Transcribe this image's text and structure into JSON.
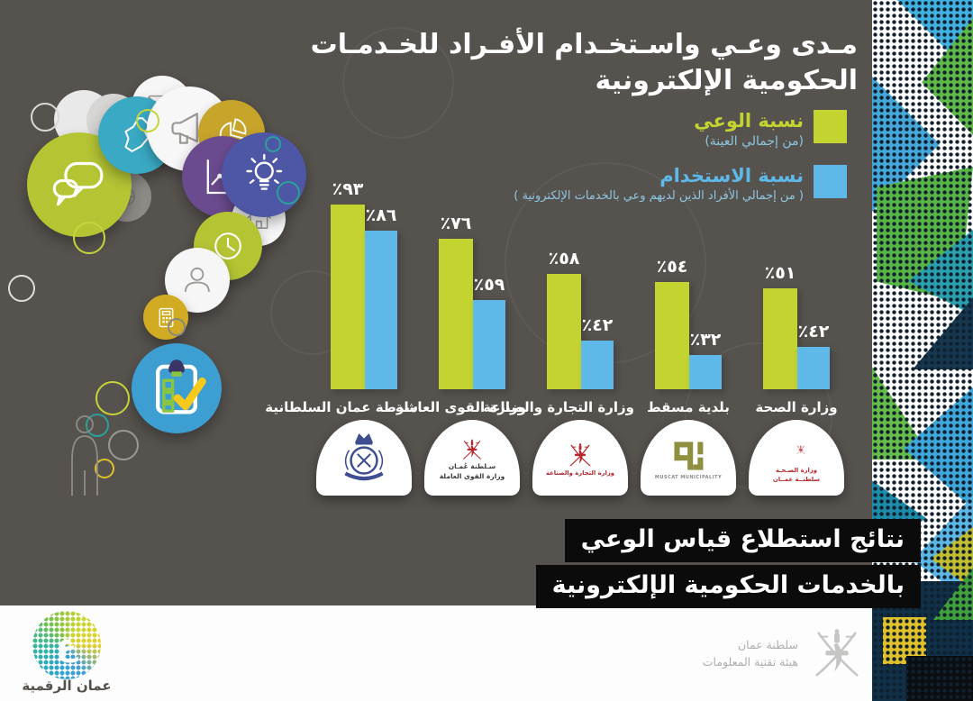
{
  "title": {
    "line1": "مـدى وعـي واسـتخـدام الأفـراد للخـدمـات",
    "line2": "الحكومية الإلكترونية"
  },
  "legend": {
    "awareness": {
      "label": "نسبة الوعي",
      "sublabel": "(من إجمالي العينة)",
      "color": "#c3d32f"
    },
    "usage": {
      "label": "نسبة الاستخدام",
      "sublabel": "( من إجمالي الأفراد الذين لديهم وعي بالخدمات الإلكترونية )",
      "color": "#5eb9e9"
    }
  },
  "chart_data": {
    "type": "bar",
    "categories": [
      "شرطة عمان السلطانية",
      "وزارة القوى العاملة",
      "وزارة التجارة والصناعة",
      "بلدية مسقط",
      "وزارة الصحة"
    ],
    "series": [
      {
        "name": "نسبة الوعي",
        "values": [
          93,
          76,
          58,
          54,
          51
        ],
        "labels": [
          "٪٩٣",
          "٪٧٦",
          "٪٥٨",
          "٪٥٤",
          "٪٥١"
        ],
        "color": "#c3d32f"
      },
      {
        "name": "نسبة الاستخدام",
        "values": [
          86,
          59,
          42,
          32,
          42
        ],
        "labels": [
          "٪٨٦",
          "٪٥٩",
          "٪٤٢",
          "٪٣٢",
          "٪٤٢"
        ],
        "color": "#5eb9e9"
      }
    ],
    "ylim": [
      0,
      100
    ],
    "grid": false,
    "legend_position": "top-right",
    "usage_bars_relative_to_awareness": true
  },
  "badges": [
    {
      "name": "royal-oman-police",
      "caption": "شرطة عمان السلطانية"
    },
    {
      "name": "ministry-of-manpower",
      "caption": "وزارة القوى العاملة",
      "text1": "سـلطنة عُمـان",
      "text2": "وزارة القوى العاملة"
    },
    {
      "name": "ministry-of-commerce-industry",
      "caption": "وزارة التجارة والصناعة",
      "text1": "وزارة التجارة والصناعة"
    },
    {
      "name": "muscat-municipality",
      "caption": "بلدية مسقط",
      "text1": "MUSCAT MUNICIPALITY"
    },
    {
      "name": "ministry-of-health",
      "caption": "وزارة الصحة",
      "text1": "وزارة الصـحـة",
      "text2": "سلطنــة عمــان"
    }
  ],
  "banner": {
    "line1": "نتائج استطلاع قياس الوعي",
    "line2": "بالخدمات الحكومية الإلكترونية"
  },
  "footer": {
    "digital_oman": {
      "letter": "ع",
      "label": "عمان الرقمية"
    },
    "ita": {
      "line1": "سلطنة عمان",
      "line2": "هيئة تقنية المعلومات"
    }
  },
  "decor_icons": [
    "chat-icon",
    "oman-map-icon",
    "envelope-icon",
    "megaphone-icon",
    "pie-chart-icon",
    "line-graph-icon",
    "lightbulb-icon",
    "house-icon",
    "clock-icon",
    "person-icon",
    "calculator-icon",
    "clipboard-checklist-icon",
    "person-outline-figure",
    "khanjar-emblem-icon"
  ],
  "colors": {
    "background": "#56524e",
    "bar_green": "#c3d32f",
    "bar_blue": "#5eb9e9",
    "banner_bg": "#0b0b0c",
    "badge_bg": "#ffffff",
    "legend_sub_blue": "#8ec6e2"
  }
}
